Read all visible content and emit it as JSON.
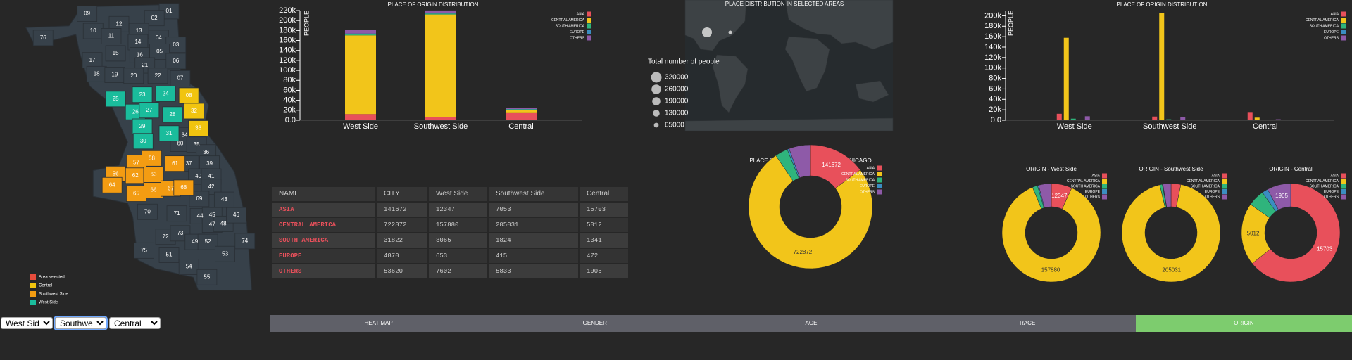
{
  "map": {
    "areas": [
      {
        "label": "09"
      },
      {
        "label": "01"
      },
      {
        "label": "12"
      },
      {
        "label": "02"
      },
      {
        "label": "76"
      },
      {
        "label": "10"
      },
      {
        "label": "11"
      },
      {
        "label": "13"
      },
      {
        "label": "14"
      },
      {
        "label": "04"
      },
      {
        "label": "03"
      },
      {
        "label": "15"
      },
      {
        "label": "16"
      },
      {
        "label": "05"
      },
      {
        "label": "17"
      },
      {
        "label": "21"
      },
      {
        "label": "06"
      },
      {
        "label": "18"
      },
      {
        "label": "19"
      },
      {
        "label": "20"
      },
      {
        "label": "22"
      },
      {
        "label": "07"
      },
      {
        "label": "23",
        "color": "#1abc9c"
      },
      {
        "label": "24",
        "color": "#1abc9c"
      },
      {
        "label": "08",
        "color": "#f1c40f"
      },
      {
        "label": "25",
        "color": "#1abc9c"
      },
      {
        "label": "26",
        "color": "#1abc9c"
      },
      {
        "label": "27",
        "color": "#1abc9c"
      },
      {
        "label": "32",
        "color": "#f1c40f"
      },
      {
        "label": "28",
        "color": "#1abc9c"
      },
      {
        "label": "33",
        "color": "#f1c40f"
      },
      {
        "label": "29",
        "color": "#1abc9c"
      },
      {
        "label": "31",
        "color": "#1abc9c"
      },
      {
        "label": "34"
      },
      {
        "label": "30",
        "color": "#1abc9c"
      },
      {
        "label": "60"
      },
      {
        "label": "35"
      },
      {
        "label": "36"
      },
      {
        "label": "58",
        "color": "#f39c12"
      },
      {
        "label": "57",
        "color": "#f39c12"
      },
      {
        "label": "61",
        "color": "#f39c12"
      },
      {
        "label": "37"
      },
      {
        "label": "39"
      },
      {
        "label": "56",
        "color": "#f39c12"
      },
      {
        "label": "62",
        "color": "#f39c12"
      },
      {
        "label": "63",
        "color": "#f39c12"
      },
      {
        "label": "40"
      },
      {
        "label": "41"
      },
      {
        "label": "64",
        "color": "#f39c12"
      },
      {
        "label": "66",
        "color": "#f39c12"
      },
      {
        "label": "67",
        "color": "#f39c12"
      },
      {
        "label": "68",
        "color": "#f39c12"
      },
      {
        "label": "65",
        "color": "#f39c12"
      },
      {
        "label": "42"
      },
      {
        "label": "69"
      },
      {
        "label": "43"
      },
      {
        "label": "70"
      },
      {
        "label": "71"
      },
      {
        "label": "44"
      },
      {
        "label": "45"
      },
      {
        "label": "47"
      },
      {
        "label": "48"
      },
      {
        "label": "46"
      },
      {
        "label": "72"
      },
      {
        "label": "73"
      },
      {
        "label": "49"
      },
      {
        "label": "52"
      },
      {
        "label": "74"
      },
      {
        "label": "75"
      },
      {
        "label": "51"
      },
      {
        "label": "53"
      },
      {
        "label": "54"
      },
      {
        "label": "55"
      }
    ],
    "legend": [
      {
        "label": "Area selected",
        "color": "#e74c3c"
      },
      {
        "label": "Central",
        "color": "#f1c40f"
      },
      {
        "label": "Southwest Side",
        "color": "#f39c12"
      },
      {
        "label": "West Side",
        "color": "#1abc9c"
      }
    ]
  },
  "selectors": [
    "West Side",
    "Southwest Side",
    "Central"
  ],
  "table": {
    "columns": [
      "NAME",
      "CITY",
      "West Side",
      "Southwest Side",
      "Central"
    ],
    "rows": [
      [
        "ASIA",
        141672,
        12347,
        7053,
        15703
      ],
      [
        "CENTRAL AMERICA",
        722872,
        157880,
        205031,
        5012
      ],
      [
        "SOUTH AMERICA",
        31822,
        3065,
        1824,
        1341
      ],
      [
        "EUROPE",
        4870,
        653,
        415,
        472
      ],
      [
        "OTHERS",
        53620,
        7602,
        5833,
        1905
      ]
    ]
  },
  "tabs": [
    {
      "label": "HEAT MAP",
      "active": false
    },
    {
      "label": "GENDER",
      "active": false
    },
    {
      "label": "AGE",
      "active": false
    },
    {
      "label": "RACE",
      "active": false
    },
    {
      "label": "ORIGIN",
      "active": true
    }
  ],
  "chart_data": [
    {
      "type": "bar",
      "stacked": true,
      "title": "PLACE OF ORIGIN DISTRIBUTION",
      "ylabel": "PEOPLE",
      "legend": "top-right",
      "categories": [
        "West Side",
        "Southwest Side",
        "Central"
      ],
      "series": [
        {
          "name": "ASIA",
          "color": "#e8505b",
          "values": [
            12347,
            7053,
            15703
          ]
        },
        {
          "name": "CENTRAL AMERICA",
          "color": "#f2c51a",
          "values": [
            157880,
            205031,
            5012
          ]
        },
        {
          "name": "SOUTH AMERICA",
          "color": "#2fb47c",
          "values": [
            3065,
            1824,
            1341
          ]
        },
        {
          "name": "EUROPE",
          "color": "#3a8ec2",
          "values": [
            653,
            415,
            472
          ]
        },
        {
          "name": "OTHERS",
          "color": "#8e5aa8",
          "values": [
            7602,
            5833,
            1905
          ]
        }
      ],
      "ylim": [
        0,
        220000
      ],
      "yticks": [
        {
          "value": 0,
          "label": "0.0"
        },
        {
          "value": 20000,
          "label": "20k"
        },
        {
          "value": 40000,
          "label": "40k"
        },
        {
          "value": 60000,
          "label": "60k"
        },
        {
          "value": 80000,
          "label": "80k"
        },
        {
          "value": 100000,
          "label": "100k"
        },
        {
          "value": 120000,
          "label": "120k"
        },
        {
          "value": 140000,
          "label": "140k"
        },
        {
          "value": 160000,
          "label": "160k"
        },
        {
          "value": 180000,
          "label": "180k"
        },
        {
          "value": 200000,
          "label": "200k"
        },
        {
          "value": 220000,
          "label": "220k"
        }
      ]
    },
    {
      "type": "bubble-map",
      "title": "PLACE DISTRIBUTION IN SELECTED AREAS",
      "size_legend": {
        "title": "Total number of people",
        "values": [
          320000,
          260000,
          190000,
          130000,
          65000
        ]
      }
    },
    {
      "type": "bar",
      "stacked": false,
      "title": "PLACE OF ORIGIN DISTRIBUTION",
      "ylabel": "PEOPLE",
      "legend": "top-right",
      "categories": [
        "West Side",
        "Southwest Side",
        "Central"
      ],
      "series": [
        {
          "name": "ASIA",
          "color": "#e8505b",
          "values": [
            12347,
            7053,
            15703
          ]
        },
        {
          "name": "CENTRAL AMERICA",
          "color": "#f2c51a",
          "values": [
            157880,
            205031,
            5012
          ]
        },
        {
          "name": "SOUTH AMERICA",
          "color": "#2fb47c",
          "values": [
            3065,
            1824,
            1341
          ]
        },
        {
          "name": "EUROPE",
          "color": "#3a8ec2",
          "values": [
            653,
            415,
            472
          ]
        },
        {
          "name": "OTHERS",
          "color": "#8e5aa8",
          "values": [
            7602,
            5833,
            1905
          ]
        }
      ],
      "ylim": [
        0,
        210000
      ],
      "yticks": [
        {
          "value": 0,
          "label": "0.0"
        },
        {
          "value": 20000,
          "label": "20k"
        },
        {
          "value": 40000,
          "label": "40k"
        },
        {
          "value": 60000,
          "label": "60k"
        },
        {
          "value": 80000,
          "label": "80k"
        },
        {
          "value": 100000,
          "label": "100k"
        },
        {
          "value": 120000,
          "label": "120k"
        },
        {
          "value": 140000,
          "label": "140k"
        },
        {
          "value": 160000,
          "label": "160k"
        },
        {
          "value": 180000,
          "label": "180k"
        },
        {
          "value": 200000,
          "label": "200k"
        }
      ]
    },
    {
      "type": "donut",
      "title": "PLACE OF ORIGIN DISTRIBUTION - CHICAGO",
      "legend": "top-right",
      "categories": [
        "ASIA",
        "CENTRAL AMERICA",
        "SOUTH AMERICA",
        "EUROPE",
        "OTHERS"
      ],
      "colors": [
        "#e8505b",
        "#f2c51a",
        "#2fb47c",
        "#3a8ec2",
        "#8e5aa8"
      ],
      "values": [
        141672,
        722872,
        31822,
        4870,
        53620
      ]
    },
    {
      "type": "donut",
      "title": "ORIGIN - West Side",
      "legend": "top-right",
      "categories": [
        "ASIA",
        "CENTRAL AMERICA",
        "SOUTH AMERICA",
        "EUROPE",
        "OTHERS"
      ],
      "colors": [
        "#e8505b",
        "#f2c51a",
        "#2fb47c",
        "#3a8ec2",
        "#8e5aa8"
      ],
      "values": [
        12347,
        157880,
        3065,
        653,
        7602
      ]
    },
    {
      "type": "donut",
      "title": "ORIGIN - Southwest Side",
      "legend": "top-right",
      "categories": [
        "ASIA",
        "CENTRAL AMERICA",
        "SOUTH AMERICA",
        "EUROPE",
        "OTHERS"
      ],
      "colors": [
        "#e8505b",
        "#f2c51a",
        "#2fb47c",
        "#3a8ec2",
        "#8e5aa8"
      ],
      "values": [
        7053,
        205031,
        1824,
        415,
        5833
      ]
    },
    {
      "type": "donut",
      "title": "ORIGIN - Central",
      "legend": "top-right",
      "categories": [
        "ASIA",
        "CENTRAL AMERICA",
        "SOUTH AMERICA",
        "EUROPE",
        "OTHERS"
      ],
      "colors": [
        "#e8505b",
        "#f2c51a",
        "#2fb47c",
        "#3a8ec2",
        "#8e5aa8"
      ],
      "values": [
        15703,
        5012,
        1341,
        472,
        1905
      ]
    }
  ]
}
